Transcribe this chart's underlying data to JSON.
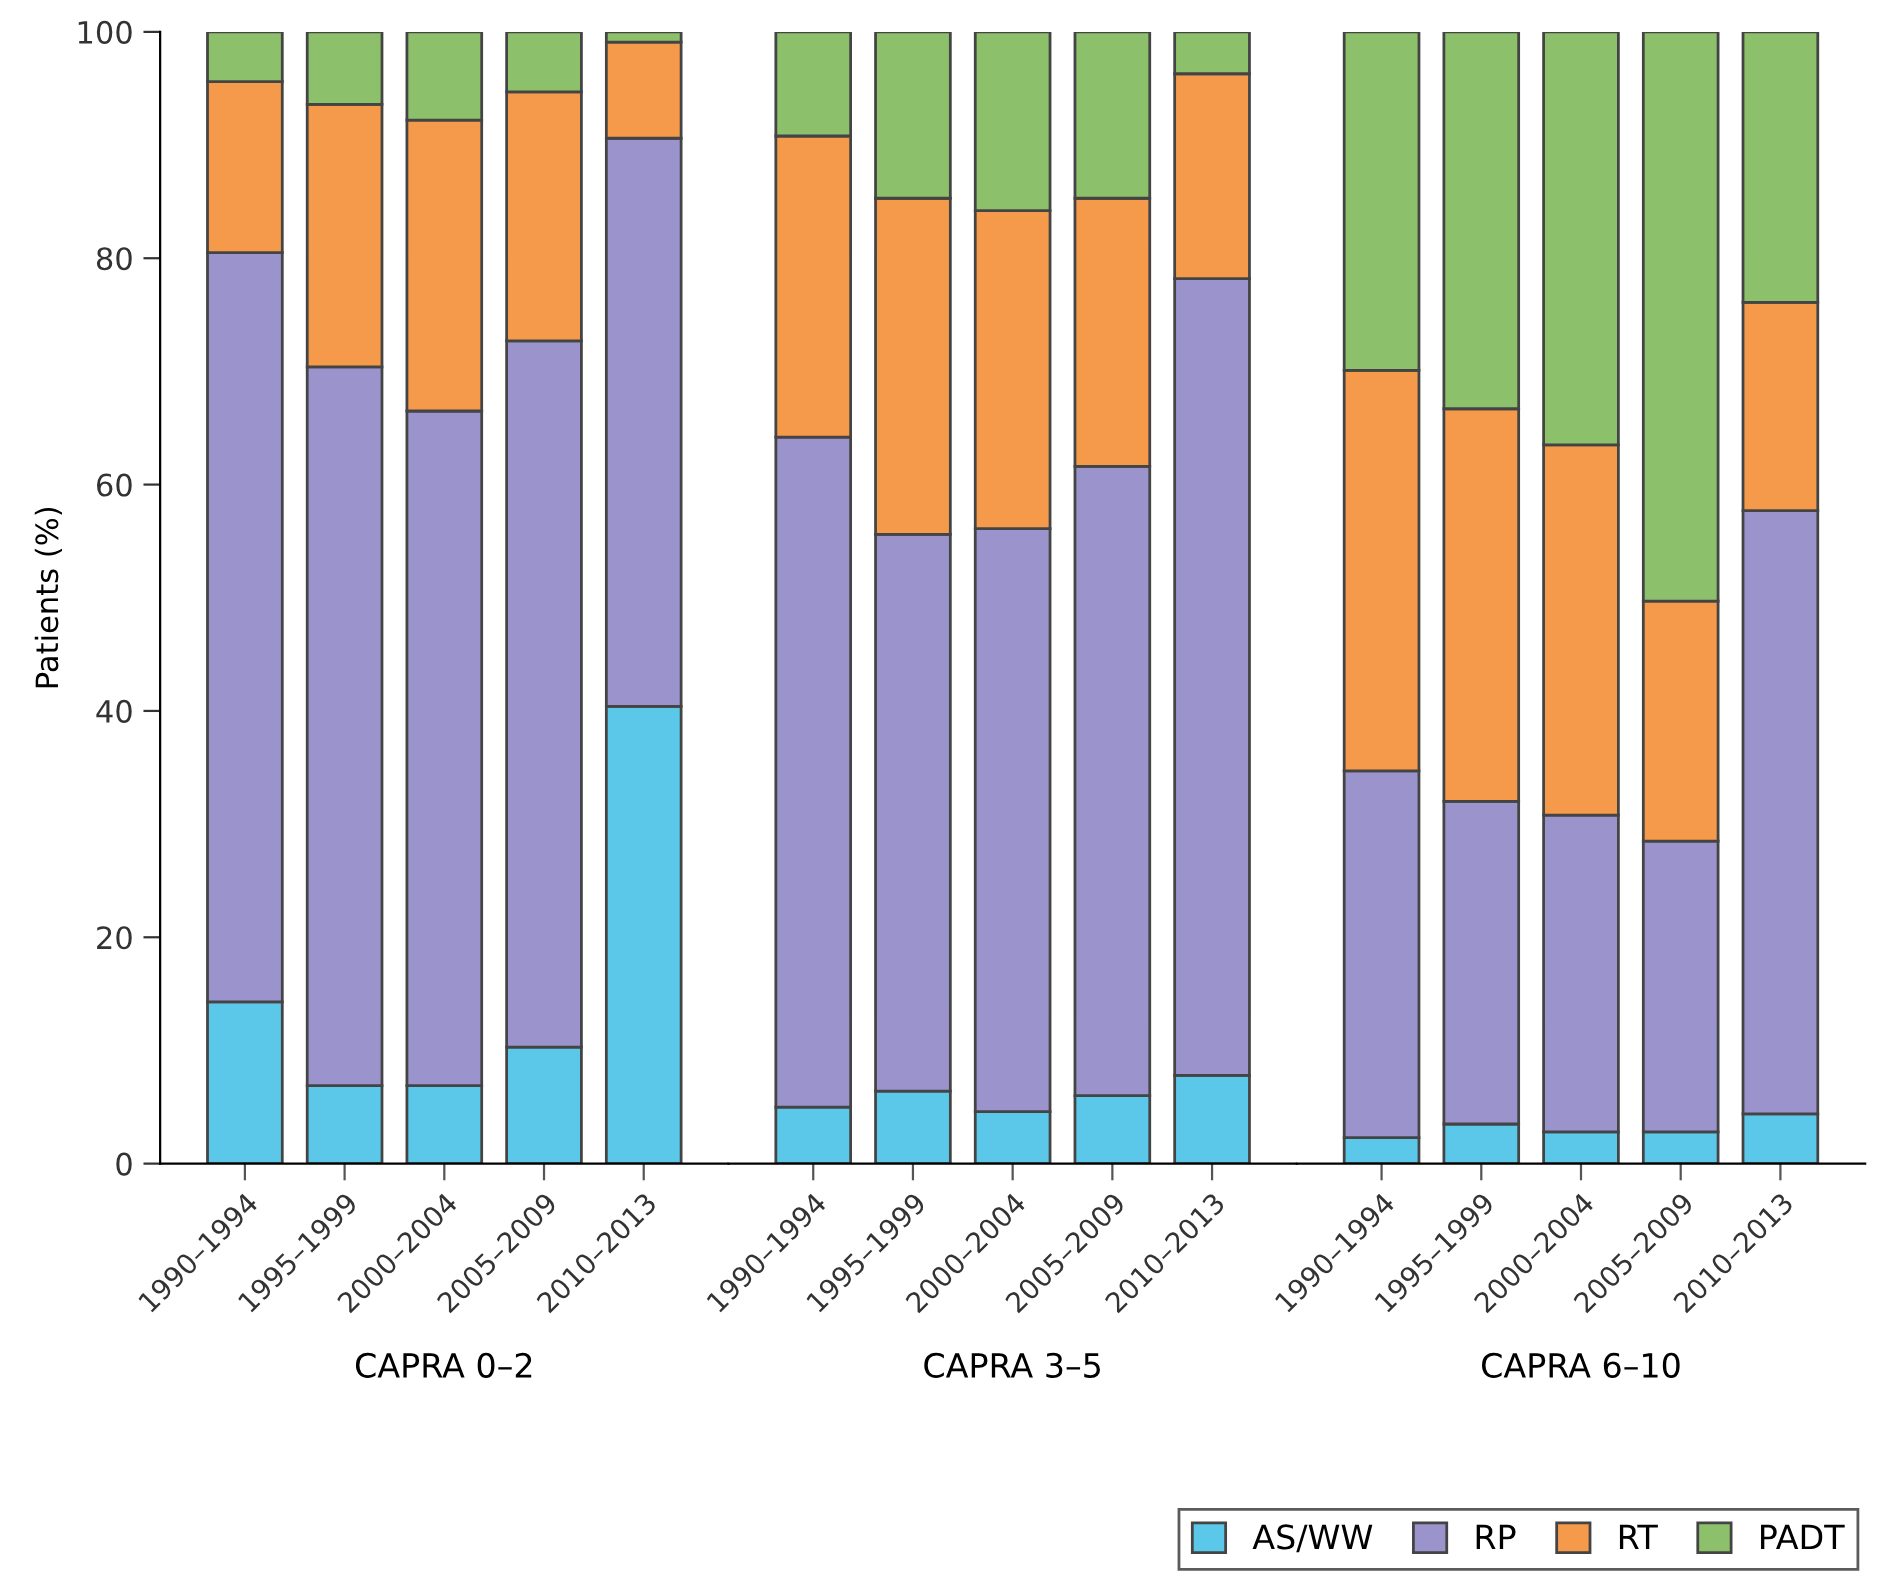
{
  "chart_data": [
    {
      "type": "bar",
      "stacked": true,
      "xlabel": "CAPRA 0–2",
      "ylabel": "Patients (%)",
      "categories": [
        "1990–1994",
        "1995–1999",
        "2000–2004",
        "2005–2009",
        "2010–2013"
      ],
      "ylim": [
        0,
        100
      ],
      "yticks": [
        0,
        20,
        40,
        60,
        80,
        100
      ],
      "grid": false,
      "legend": "bottom right",
      "series": [
        {
          "name": "AS/WW",
          "color": "#5bc8ea",
          "values": [
            14.3,
            6.9,
            6.9,
            10.3,
            40.4
          ]
        },
        {
          "name": "RP",
          "color": "#9b93cc",
          "values": [
            66.2,
            63.5,
            59.6,
            62.4,
            50.2
          ]
        },
        {
          "name": "RT",
          "color": "#f59a4a",
          "values": [
            15.1,
            23.2,
            25.7,
            22.0,
            8.5
          ]
        },
        {
          "name": "PADT",
          "color": "#8cc06a",
          "values": [
            4.4,
            6.4,
            7.8,
            5.3,
            0.9
          ]
        }
      ]
    },
    {
      "type": "bar",
      "stacked": true,
      "xlabel": "CAPRA 3–5",
      "categories": [
        "1990–1994",
        "1995–1999",
        "2000–2004",
        "2005–2009",
        "2010–2013"
      ],
      "ylim": [
        0,
        100
      ],
      "tick_labels": "x",
      "grid": false,
      "series": [
        {
          "color": "#5bc8ea",
          "values": [
            5.0,
            6.4,
            4.6,
            6.0,
            7.8
          ]
        },
        {
          "color": "#9b93cc",
          "values": [
            59.2,
            49.2,
            51.5,
            55.6,
            70.4
          ]
        },
        {
          "color": "#f59a4a",
          "values": [
            26.6,
            29.7,
            28.1,
            23.7,
            18.1
          ]
        },
        {
          "color": "#8cc06a",
          "values": [
            9.2,
            14.7,
            15.8,
            14.7,
            3.7
          ]
        }
      ]
    },
    {
      "type": "bar",
      "stacked": true,
      "xlabel": "CAPRA 6–10",
      "categories": [
        "1990–1994",
        "1995–1999",
        "2000–2004",
        "2005–2009",
        "2010–2013"
      ],
      "ylim": [
        0,
        100
      ],
      "tick_labels": "x",
      "grid": false,
      "series": [
        {
          "color": "#5bc8ea",
          "values": [
            2.3,
            3.5,
            2.8,
            2.8,
            4.4
          ]
        },
        {
          "color": "#9b93cc",
          "values": [
            32.4,
            28.5,
            28.0,
            25.7,
            53.3
          ]
        },
        {
          "color": "#f59a4a",
          "values": [
            35.4,
            34.7,
            32.7,
            21.2,
            18.4
          ]
        },
        {
          "color": "#8cc06a",
          "values": [
            29.9,
            33.3,
            36.5,
            50.3,
            23.9
          ]
        }
      ]
    }
  ]
}
